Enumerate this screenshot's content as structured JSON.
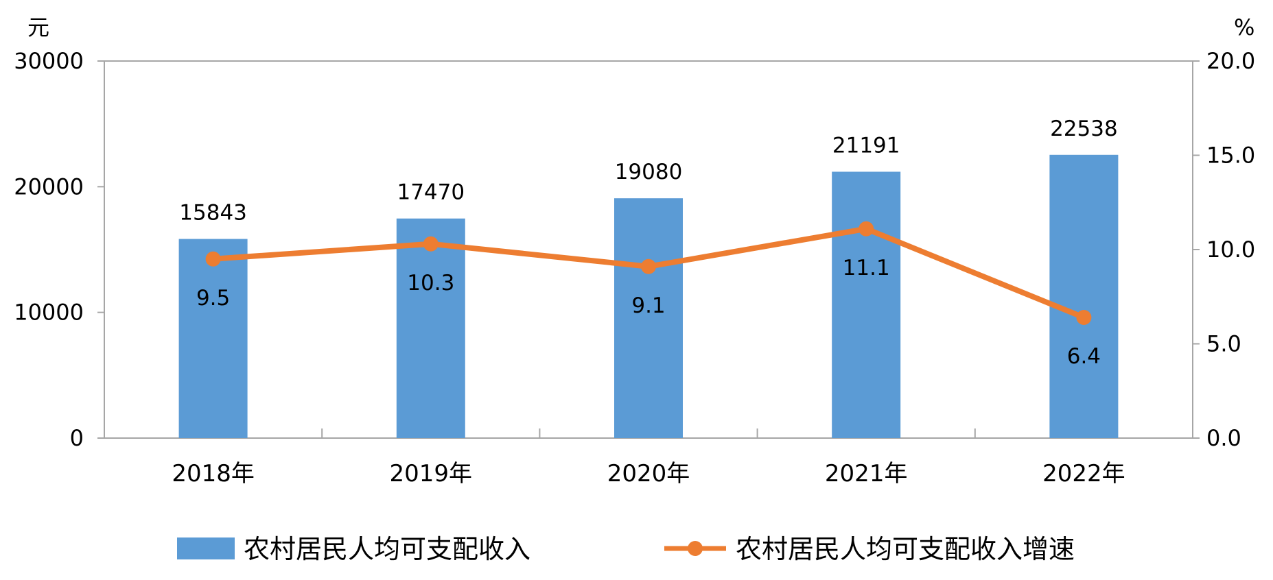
{
  "chart_data": {
    "type": "bar",
    "categories": [
      "2018年",
      "2019年",
      "2020年",
      "2021年",
      "2022年"
    ],
    "series": [
      {
        "name": "农村居民人均可支配收入",
        "type": "bar",
        "axis": "left",
        "color": "#5B9BD5",
        "values": [
          15843,
          17470,
          19080,
          21191,
          22538
        ],
        "labels": [
          "15843",
          "17470",
          "19080",
          "21191",
          "22538"
        ]
      },
      {
        "name": "农村居民人均可支配收入增速",
        "type": "line",
        "axis": "right",
        "color": "#ED7D31",
        "values": [
          9.5,
          10.3,
          9.1,
          11.1,
          6.4
        ],
        "labels": [
          "9.5",
          "10.3",
          "9.1",
          "11.1",
          "6.4"
        ]
      }
    ],
    "left_axis": {
      "unit": "元",
      "min": 0,
      "max": 30000,
      "ticks": [
        0,
        10000,
        20000,
        30000
      ],
      "tick_labels": [
        "0",
        "10000",
        "20000",
        "30000"
      ]
    },
    "right_axis": {
      "unit": "%",
      "min": 0,
      "max": 20,
      "ticks": [
        0,
        5,
        10,
        15,
        20
      ],
      "tick_labels": [
        "0.0",
        "5.0",
        "10.0",
        "15.0",
        "20.0"
      ]
    },
    "grid": false,
    "legend_position": "bottom",
    "colors": {
      "axis": "#A6A6A6"
    }
  }
}
